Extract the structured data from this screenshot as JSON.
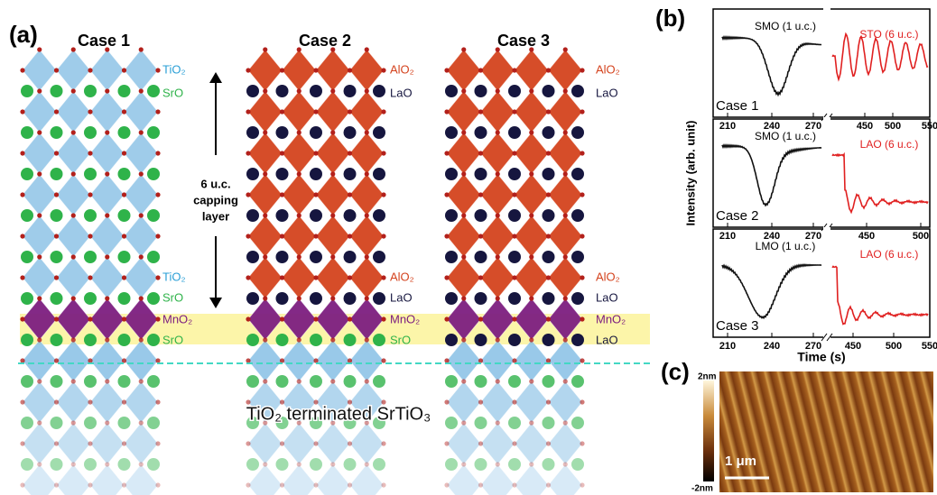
{
  "panel_a": {
    "label": "(a)",
    "cases": [
      {
        "title": "Case 1",
        "labels": [
          "TiO₂",
          "SrO",
          "TiO₂",
          "SrO",
          "MnO₂",
          "SrO"
        ]
      },
      {
        "title": "Case 2",
        "labels": [
          "AlO₂",
          "LaO",
          "AlO₂",
          "LaO",
          "MnO₂",
          "SrO"
        ]
      },
      {
        "title": "Case 3",
        "labels": [
          "AlO₂",
          "LaO",
          "AlO₂",
          "LaO",
          "MnO₂",
          "LaO"
        ]
      }
    ],
    "capping": [
      "6 u.c.",
      "capping",
      "layer"
    ],
    "substrate": "TiO₂ terminated SrTiO₃"
  },
  "panel_b": {
    "label": "(b)",
    "y_label": "Intensity (arb. unit)",
    "x_label": "Time (s)",
    "plots": [
      {
        "case": "Case 1",
        "left_label": "SMO (1 u.c.)",
        "right_label": "STO (6 u.c.)",
        "xticks": [
          "210",
          "240",
          "270",
          "450",
          "500",
          "550"
        ]
      },
      {
        "case": "Case 2",
        "left_label": "SMO (1 u.c.)",
        "right_label": "LAO (6 u.c.)",
        "xticks": [
          "210",
          "240",
          "270",
          "450",
          "500"
        ]
      },
      {
        "case": "Case 3",
        "left_label": "LMO (1 u.c.)",
        "right_label": "LAO (6 u.c.)",
        "xticks": [
          "210",
          "240",
          "270",
          "450",
          "500",
          "550"
        ]
      }
    ]
  },
  "panel_c": {
    "label": "(c)",
    "colorbar": [
      "2nm",
      "-2nm"
    ],
    "scale": "1 μm"
  }
}
